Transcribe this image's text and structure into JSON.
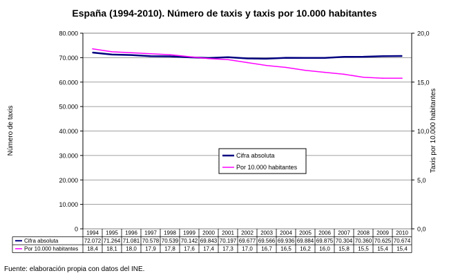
{
  "chart_data": {
    "type": "line",
    "title": "España (1994-2010). Número de taxis y taxis por 10.000 habitantes",
    "ylabel_left": "Número de taxis",
    "ylabel_right": "Taxis por 10.000 habitantes",
    "y_left_ticks": [
      "0",
      "10.000",
      "20.000",
      "30.000",
      "40.000",
      "50.000",
      "60.000",
      "70.000",
      "80.000"
    ],
    "y_right_ticks": [
      "0,0",
      "5,0",
      "10,0",
      "15,0",
      "20,0"
    ],
    "ylim_left": [
      0,
      80000
    ],
    "ylim_right": [
      0,
      20
    ],
    "grid": true,
    "legend_position": "center",
    "categories": [
      "1994",
      "1995",
      "1996",
      "1997",
      "1998",
      "1999",
      "2000",
      "2001",
      "2002",
      "2003",
      "2004",
      "2005",
      "2006",
      "2007",
      "2008",
      "2009",
      "2010"
    ],
    "series": [
      {
        "name": "Cifra absoluta",
        "axis": "left",
        "color": "#000080",
        "values": [
          72072,
          71264,
          71081,
          70578,
          70539,
          70142,
          69843,
          70197,
          69677,
          69566,
          69936,
          69884,
          69875,
          70304,
          70360,
          70625,
          70674
        ],
        "labels": [
          "72.072",
          "71.264",
          "71.081",
          "70.578",
          "70.539",
          "70.142",
          "69.843",
          "70.197",
          "69.677",
          "69.566",
          "69.936",
          "69.884",
          "69.875",
          "70.304",
          "70.360",
          "70.625",
          "70.674"
        ]
      },
      {
        "name": "Por 10.000 habitantes",
        "axis": "right",
        "color": "#ff00ff",
        "values": [
          18.4,
          18.1,
          18.0,
          17.9,
          17.8,
          17.6,
          17.4,
          17.3,
          17.0,
          16.7,
          16.5,
          16.2,
          16.0,
          15.8,
          15.5,
          15.4,
          15.4
        ],
        "labels": [
          "18,4",
          "18,1",
          "18,0",
          "17,9",
          "17,8",
          "17,6",
          "17,4",
          "17,3",
          "17,0",
          "16,7",
          "16,5",
          "16,2",
          "16,0",
          "15,8",
          "15,5",
          "15,4",
          "15,4"
        ]
      }
    ]
  },
  "source": "Fuente: elaboración propia con datos del INE."
}
